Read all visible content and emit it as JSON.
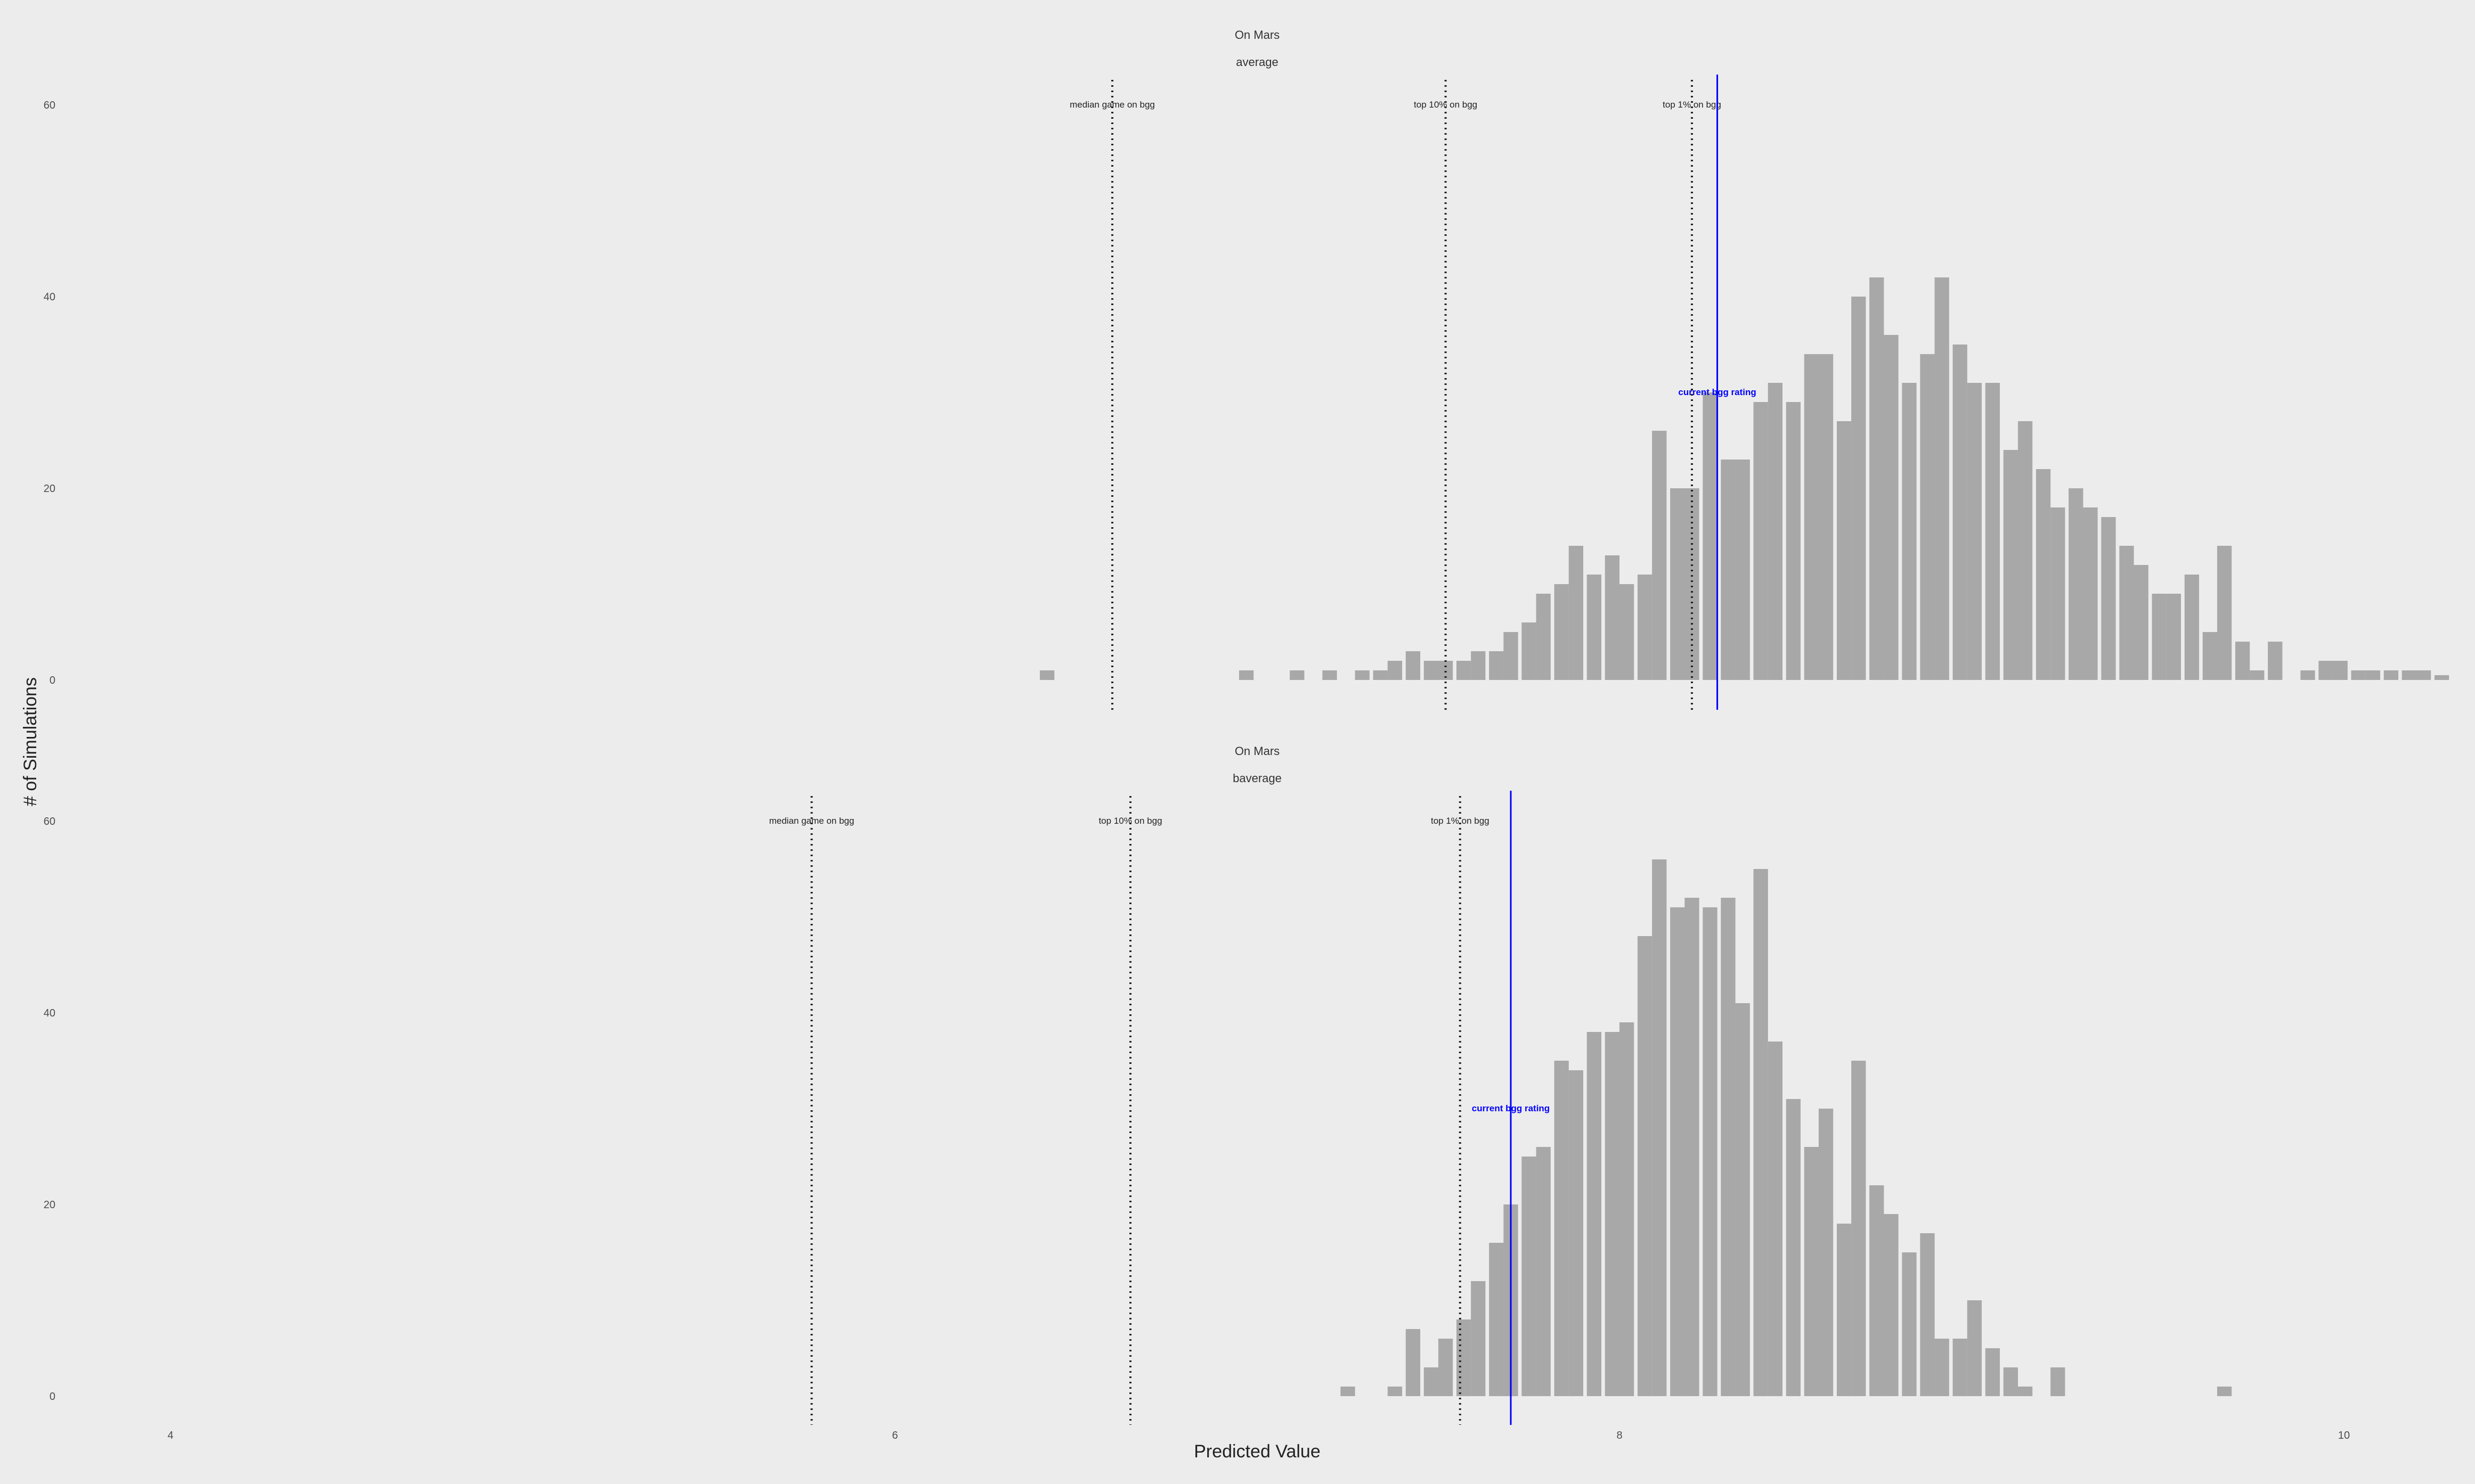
{
  "colors": {
    "background": "#ececec",
    "bar": "#a8a8a8",
    "reference": "#222222",
    "current": "#0000ff"
  },
  "chart_data": {
    "type": "bar",
    "xlabel": "Predicted Value",
    "ylabel": "# of Simulations",
    "xlim": [
      3.7,
      10.3
    ],
    "x_ticks": [
      4,
      6,
      8,
      10
    ],
    "ylim": [
      0,
      63
    ],
    "y_ticks": [
      0,
      20,
      40,
      60
    ],
    "bin_width": 0.046,
    "grid": false,
    "panels": [
      {
        "title": "On Mars",
        "subtitle": "average",
        "bins": [
          [
            6.42,
            1
          ],
          [
            6.97,
            1
          ],
          [
            7.11,
            1
          ],
          [
            7.2,
            1
          ],
          [
            7.29,
            1
          ],
          [
            7.34,
            1
          ],
          [
            7.38,
            2
          ],
          [
            7.43,
            3
          ],
          [
            7.48,
            2
          ],
          [
            7.52,
            2
          ],
          [
            7.57,
            2
          ],
          [
            7.61,
            3
          ],
          [
            7.66,
            3
          ],
          [
            7.7,
            5
          ],
          [
            7.75,
            6
          ],
          [
            7.79,
            9
          ],
          [
            7.84,
            10
          ],
          [
            7.88,
            14
          ],
          [
            7.93,
            11
          ],
          [
            7.98,
            13
          ],
          [
            8.02,
            10
          ],
          [
            8.07,
            11
          ],
          [
            8.11,
            26
          ],
          [
            8.16,
            20
          ],
          [
            8.2,
            20
          ],
          [
            8.25,
            30
          ],
          [
            8.3,
            23
          ],
          [
            8.34,
            23
          ],
          [
            8.39,
            29
          ],
          [
            8.43,
            31
          ],
          [
            8.48,
            29
          ],
          [
            8.53,
            34
          ],
          [
            8.57,
            34
          ],
          [
            8.62,
            27
          ],
          [
            8.66,
            40
          ],
          [
            8.71,
            42
          ],
          [
            8.75,
            36
          ],
          [
            8.8,
            31
          ],
          [
            8.85,
            34
          ],
          [
            8.89,
            42
          ],
          [
            8.94,
            35
          ],
          [
            8.98,
            31
          ],
          [
            9.03,
            31
          ],
          [
            9.08,
            24
          ],
          [
            9.12,
            27
          ],
          [
            9.17,
            22
          ],
          [
            9.21,
            18
          ],
          [
            9.26,
            20
          ],
          [
            9.3,
            18
          ],
          [
            9.35,
            17
          ],
          [
            9.4,
            14
          ],
          [
            9.44,
            12
          ],
          [
            9.49,
            9
          ],
          [
            9.53,
            9
          ],
          [
            9.58,
            11
          ],
          [
            9.63,
            5
          ],
          [
            9.67,
            14
          ],
          [
            9.72,
            4
          ],
          [
            9.76,
            1
          ],
          [
            9.81,
            4
          ],
          [
            9.9,
            1
          ],
          [
            9.95,
            2
          ],
          [
            9.99,
            2
          ],
          [
            10.04,
            1
          ],
          [
            10.08,
            1
          ],
          [
            10.13,
            1
          ],
          [
            10.18,
            1
          ],
          [
            10.22,
            1
          ],
          [
            10.27,
            0.5
          ]
        ],
        "references": [
          {
            "label": "median game on bgg",
            "value": 6.6
          },
          {
            "label": "top 10% on bgg",
            "value": 7.52
          },
          {
            "label": "top 1% on bgg",
            "value": 8.2
          }
        ],
        "current": {
          "label": "current bgg rating",
          "value": 8.27
        }
      },
      {
        "title": "On Mars",
        "subtitle": "baverage",
        "bins": [
          [
            7.25,
            1
          ],
          [
            7.38,
            1
          ],
          [
            7.43,
            7
          ],
          [
            7.48,
            3
          ],
          [
            7.52,
            6
          ],
          [
            7.57,
            8
          ],
          [
            7.61,
            12
          ],
          [
            7.66,
            16
          ],
          [
            7.7,
            20
          ],
          [
            7.75,
            25
          ],
          [
            7.79,
            26
          ],
          [
            7.84,
            35
          ],
          [
            7.88,
            34
          ],
          [
            7.93,
            38
          ],
          [
            7.98,
            38
          ],
          [
            8.02,
            39
          ],
          [
            8.07,
            48
          ],
          [
            8.11,
            56
          ],
          [
            8.16,
            51
          ],
          [
            8.2,
            52
          ],
          [
            8.25,
            51
          ],
          [
            8.3,
            52
          ],
          [
            8.34,
            41
          ],
          [
            8.39,
            55
          ],
          [
            8.43,
            37
          ],
          [
            8.48,
            31
          ],
          [
            8.53,
            26
          ],
          [
            8.57,
            30
          ],
          [
            8.62,
            18
          ],
          [
            8.66,
            35
          ],
          [
            8.71,
            22
          ],
          [
            8.75,
            19
          ],
          [
            8.8,
            15
          ],
          [
            8.85,
            17
          ],
          [
            8.89,
            6
          ],
          [
            8.94,
            6
          ],
          [
            8.98,
            10
          ],
          [
            9.03,
            5
          ],
          [
            9.08,
            3
          ],
          [
            9.12,
            1
          ],
          [
            9.21,
            3
          ],
          [
            9.67,
            1
          ]
        ],
        "references": [
          {
            "label": "median game on bgg",
            "value": 5.77
          },
          {
            "label": "top 10% on bgg",
            "value": 6.65
          },
          {
            "label": "top 1% on bgg",
            "value": 7.56
          }
        ],
        "current": {
          "label": "current bgg rating",
          "value": 7.7
        }
      }
    ]
  }
}
